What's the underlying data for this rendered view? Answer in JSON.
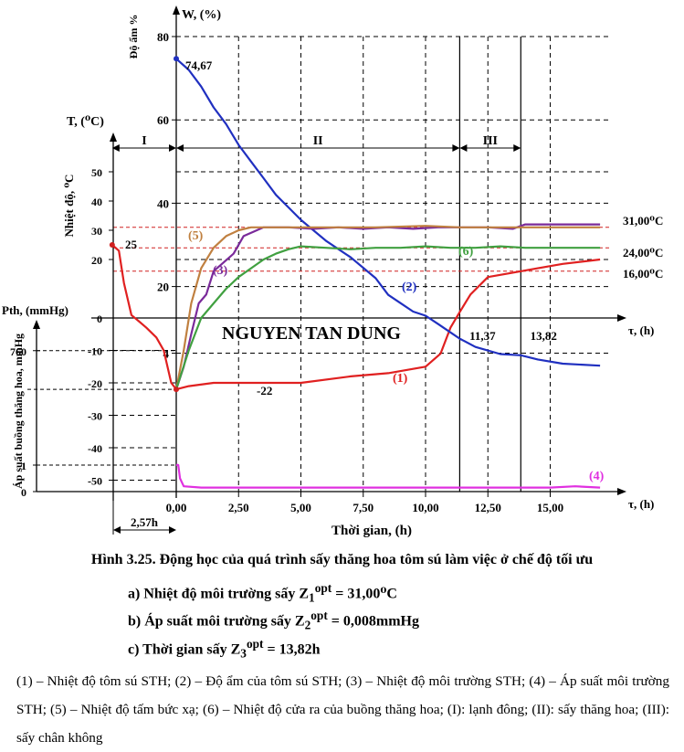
{
  "chart_data": {
    "type": "line",
    "watermark": "NGUYEN TAN DUNG",
    "xlabel": "Thời gian, (h)",
    "x_axis_name": "τ, (h)",
    "x_mid_axis_name": "τ, (h)",
    "x_ticks": [
      0,
      2.5,
      5,
      7.5,
      10,
      12.5,
      15
    ],
    "x_tick_labels": [
      "0,00",
      "2,50",
      "5,00",
      "7,50",
      "10,00",
      "12,50",
      "15,00"
    ],
    "xlim": [
      -2.57,
      17
    ],
    "offset_label": "2,57h",
    "axes": {
      "W": {
        "title": "W, (%)",
        "label": "Độ ẩm %",
        "ticks": [
          4,
          20,
          40,
          60,
          80
        ],
        "tick_labels": [
          "4",
          "20",
          "40",
          "60",
          "80"
        ]
      },
      "T": {
        "title": "T, (⁰C)",
        "label": "Nhiệt độ, ⁰C",
        "ticks": [
          -50,
          -40,
          -30,
          -20,
          -10,
          0,
          20,
          30,
          40,
          50
        ],
        "tick_labels": [
          "-50",
          "-40",
          "-30",
          "-20",
          "-10",
          "0",
          "20",
          "30",
          "40",
          "50"
        ]
      },
      "P": {
        "title": "Pth, (mmHg)",
        "label": "Áp suất buồng thăng hoa, mmHg",
        "ticks": [
          0,
          1,
          760
        ],
        "tick_labels": [
          "0",
          "1",
          "760"
        ]
      }
    },
    "stages": [
      {
        "label": "I",
        "x_start": -2.57,
        "x_end": 0
      },
      {
        "label": "II",
        "x_start": 0,
        "x_end": 11.37
      },
      {
        "label": "III",
        "x_start": 11.37,
        "x_end": 13.82
      }
    ],
    "vlines": [
      11.37,
      13.82
    ],
    "vline_labels": [
      "11,37",
      "13,82"
    ],
    "hlines": [
      {
        "value": 31,
        "label": "31,00⁰C"
      },
      {
        "value": 24,
        "label": "24,00⁰C"
      },
      {
        "value": 16,
        "label": "16,00⁰C"
      }
    ],
    "annotations": {
      "w0": "74,67",
      "t_start": "25",
      "t_min": "-22"
    },
    "series": [
      {
        "name": "(1)",
        "color": "#e02020",
        "axis": "T",
        "x": [
          -2.57,
          -2.3,
          -2.1,
          -1.8,
          -1.5,
          -1.2,
          -0.8,
          -0.5,
          -0.2,
          0,
          0.5,
          1.5,
          3,
          5,
          7,
          8.5,
          10,
          10.6,
          11,
          11.37,
          11.8,
          12.5,
          13.5,
          14.5,
          15.5,
          16.5,
          17
        ],
        "y": [
          25,
          23,
          12,
          1,
          -1,
          -3,
          -6,
          -10,
          -20,
          -22,
          -21,
          -20,
          -20,
          -20,
          -18,
          -17,
          -15,
          -11,
          -3,
          2,
          8,
          14,
          15.5,
          17,
          18.5,
          19.5,
          20
        ]
      },
      {
        "name": "(2)",
        "color": "#2030c0",
        "axis": "W",
        "x": [
          0,
          0.5,
          1,
          1.5,
          2,
          2.5,
          3,
          3.5,
          4,
          4.5,
          5,
          6,
          7,
          8,
          8.5,
          9,
          9.5,
          10,
          10.5,
          11,
          11.37,
          12,
          13,
          13.82,
          14.5,
          15.5,
          17
        ],
        "y": [
          74.67,
          72,
          68,
          63,
          59,
          54,
          50,
          46,
          42,
          39,
          36,
          31,
          27,
          22,
          18,
          16,
          14,
          13,
          11,
          9,
          7.5,
          5.5,
          3.8,
          3.5,
          2.5,
          1.5,
          1
        ]
      },
      {
        "name": "(3)",
        "color": "#7a2a9a",
        "axis": "T",
        "x": [
          0,
          0.3,
          0.6,
          0.9,
          1.2,
          1.5,
          1.9,
          2.3,
          2.7,
          3.1,
          3.5,
          4.5,
          5.5,
          6.5,
          7.5,
          8.5,
          9.5,
          10.5,
          11.37,
          12.5,
          13.5,
          14,
          15,
          16,
          17
        ],
        "y": [
          -22,
          -15,
          -5,
          5,
          8,
          16,
          19,
          22,
          28,
          29.5,
          31,
          31,
          30.5,
          31,
          30.5,
          31,
          30.5,
          31,
          31,
          31,
          30.5,
          32,
          32,
          32,
          32
        ]
      },
      {
        "name": "(4)",
        "color": "#e030e0",
        "axis": "P",
        "x": [
          0,
          0.08,
          0.15,
          0.3,
          1,
          3,
          5,
          7,
          9,
          11,
          13,
          15,
          16,
          17
        ],
        "y": [
          1.8,
          1.6,
          0.5,
          0.2,
          0.15,
          0.15,
          0.15,
          0.15,
          0.15,
          0.15,
          0.15,
          0.15,
          0.2,
          0.15
        ]
      },
      {
        "name": "(5)",
        "color": "#c08040",
        "axis": "T",
        "x": [
          0,
          0.3,
          0.6,
          1,
          1.5,
          2,
          2.5,
          3,
          4,
          6,
          8,
          10,
          11.37,
          13,
          15,
          17
        ],
        "y": [
          -22,
          -10,
          5,
          17,
          24,
          28,
          30,
          31,
          31,
          31,
          31,
          31.5,
          31,
          31,
          31,
          31
        ]
      },
      {
        "name": "(6)",
        "color": "#40a040",
        "axis": "T",
        "x": [
          0,
          0.5,
          1,
          1.5,
          2,
          2.5,
          3,
          3.5,
          4,
          4.5,
          5,
          6,
          7,
          8,
          9,
          10,
          11,
          12,
          13,
          14,
          15,
          16,
          17
        ],
        "y": [
          -22,
          -10,
          0,
          5,
          10,
          14,
          17,
          20,
          22,
          23.5,
          24.5,
          24,
          23.5,
          24,
          24,
          24.5,
          24,
          24,
          24.5,
          24,
          24,
          24,
          24
        ]
      }
    ]
  },
  "caption": {
    "title": "Hình 3.25. Động học của quá trình sấy thăng hoa tôm sú làm việc ở chế độ tối ưu",
    "items": [
      {
        "prefix": "a) Nhiệt độ môi trường sấy Z",
        "sub": "1",
        "sup": "opt",
        "value": " = 31,00⁰C"
      },
      {
        "prefix": "b) Áp suất môi trường sấy Z",
        "sub": "2",
        "sup": "opt",
        "value": " = 0,008mmHg"
      },
      {
        "prefix": "c) Thời gian sấy Z",
        "sub": "3",
        "sup": "opt",
        "value": " = 13,82h"
      }
    ],
    "notes": "(1) – Nhiệt độ tôm sú STH; (2) – Độ ẩm của tôm sú STH; (3) – Nhiệt độ môi trường STH; (4) – Áp suất môi trường STH; (5) – Nhiệt độ tấm bức xạ; (6) – Nhiệt độ cửa ra của buồng thăng hoa; (I): lạnh đông; (II): sấy thăng hoa; (III): sấy chân không"
  }
}
